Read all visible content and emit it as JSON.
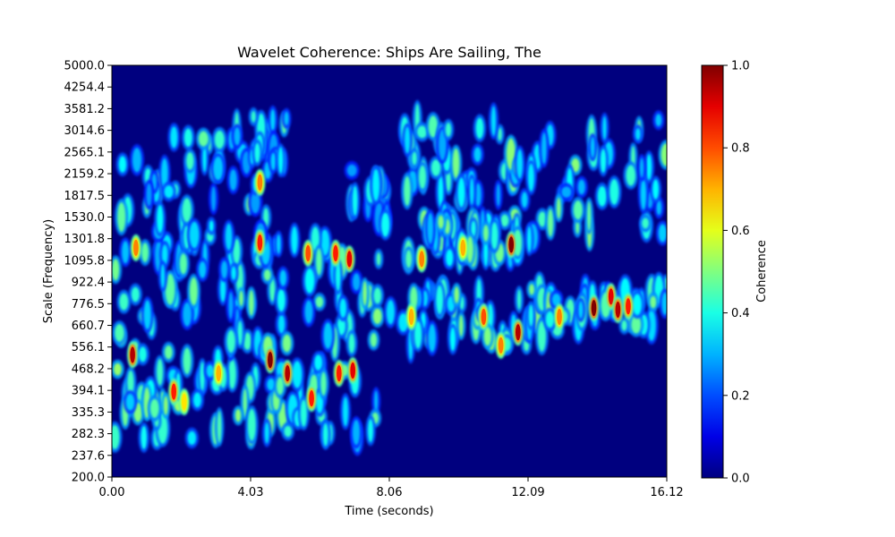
{
  "chart_data": {
    "type": "heatmap",
    "title": "Wavelet Coherence: Ships Are Sailing, The",
    "xlabel": "Time (seconds)",
    "ylabel": "Scale (Frequency)",
    "xlim": [
      0,
      16.12
    ],
    "ylim": [
      200,
      5000
    ],
    "y_scale": "log",
    "x_ticks": [
      "0.00",
      "4.03",
      "8.06",
      "12.09",
      "16.12"
    ],
    "x_tick_values": [
      0,
      4.03,
      8.06,
      12.09,
      16.12
    ],
    "y_ticks": [
      "200.0",
      "237.6",
      "282.3",
      "335.3",
      "394.1",
      "468.2",
      "556.1",
      "660.7",
      "776.5",
      "922.4",
      "1095.8",
      "1301.8",
      "1530.0",
      "1817.5",
      "2159.2",
      "2565.1",
      "3014.6",
      "3581.2",
      "4254.4",
      "5000.0"
    ],
    "colorbar": {
      "label": "Coherence",
      "range": [
        0,
        1
      ],
      "ticks": [
        "0.0",
        "0.2",
        "0.4",
        "0.6",
        "0.8",
        "1.0"
      ],
      "tick_values": [
        0,
        0.2,
        0.4,
        0.6,
        0.8,
        1.0
      ],
      "colormap": "jet"
    },
    "background_value": 0.0,
    "coherence_regions": [
      {
        "t0": 0.0,
        "t1": 4.2,
        "f0": 270,
        "f1": 560,
        "level": 0.42
      },
      {
        "t0": 0.0,
        "t1": 7.8,
        "f0": 560,
        "f1": 1300,
        "level": 0.4
      },
      {
        "t0": 0.2,
        "t1": 4.6,
        "f0": 1300,
        "f1": 2900,
        "level": 0.38
      },
      {
        "t0": 3.6,
        "t1": 5.2,
        "f0": 2300,
        "f1": 3400,
        "level": 0.36
      },
      {
        "t0": 4.4,
        "t1": 7.8,
        "f0": 270,
        "f1": 560,
        "level": 0.4
      },
      {
        "t0": 6.6,
        "t1": 8.2,
        "f0": 1400,
        "f1": 2200,
        "level": 0.36
      },
      {
        "t0": 7.6,
        "t1": 16.12,
        "f0": 1300,
        "f1": 3300,
        "level": 0.4
      },
      {
        "t0": 8.0,
        "t1": 13.0,
        "f0": 560,
        "f1": 880,
        "level": 0.42
      },
      {
        "t0": 12.8,
        "t1": 16.12,
        "f0": 640,
        "f1": 880,
        "level": 0.42
      },
      {
        "t0": 8.6,
        "t1": 12.2,
        "f0": 1100,
        "f1": 1500,
        "level": 0.4
      }
    ],
    "hotspots": [
      {
        "t": 0.6,
        "f": 520,
        "v": 0.95
      },
      {
        "t": 0.7,
        "f": 1200,
        "v": 0.75
      },
      {
        "t": 1.8,
        "f": 390,
        "v": 0.85
      },
      {
        "t": 2.1,
        "f": 360,
        "v": 0.65
      },
      {
        "t": 3.1,
        "f": 450,
        "v": 0.7
      },
      {
        "t": 4.3,
        "f": 2000,
        "v": 0.75
      },
      {
        "t": 4.3,
        "f": 1250,
        "v": 0.85
      },
      {
        "t": 4.6,
        "f": 500,
        "v": 1.0
      },
      {
        "t": 5.1,
        "f": 450,
        "v": 0.95
      },
      {
        "t": 5.7,
        "f": 1150,
        "v": 0.8
      },
      {
        "t": 5.8,
        "f": 370,
        "v": 0.85
      },
      {
        "t": 6.5,
        "f": 1150,
        "v": 0.85
      },
      {
        "t": 6.6,
        "f": 450,
        "v": 0.85
      },
      {
        "t": 6.9,
        "f": 1100,
        "v": 0.9
      },
      {
        "t": 7.0,
        "f": 460,
        "v": 0.9
      },
      {
        "t": 8.7,
        "f": 700,
        "v": 0.7
      },
      {
        "t": 9.0,
        "f": 1100,
        "v": 0.75
      },
      {
        "t": 10.2,
        "f": 1200,
        "v": 0.7
      },
      {
        "t": 10.8,
        "f": 700,
        "v": 0.8
      },
      {
        "t": 11.3,
        "f": 560,
        "v": 0.75
      },
      {
        "t": 11.6,
        "f": 1230,
        "v": 1.0
      },
      {
        "t": 11.8,
        "f": 620,
        "v": 0.95
      },
      {
        "t": 13.0,
        "f": 700,
        "v": 0.75
      },
      {
        "t": 14.0,
        "f": 750,
        "v": 1.0
      },
      {
        "t": 14.5,
        "f": 820,
        "v": 0.9
      },
      {
        "t": 14.7,
        "f": 740,
        "v": 0.95
      },
      {
        "t": 15.0,
        "f": 760,
        "v": 0.85
      }
    ]
  }
}
